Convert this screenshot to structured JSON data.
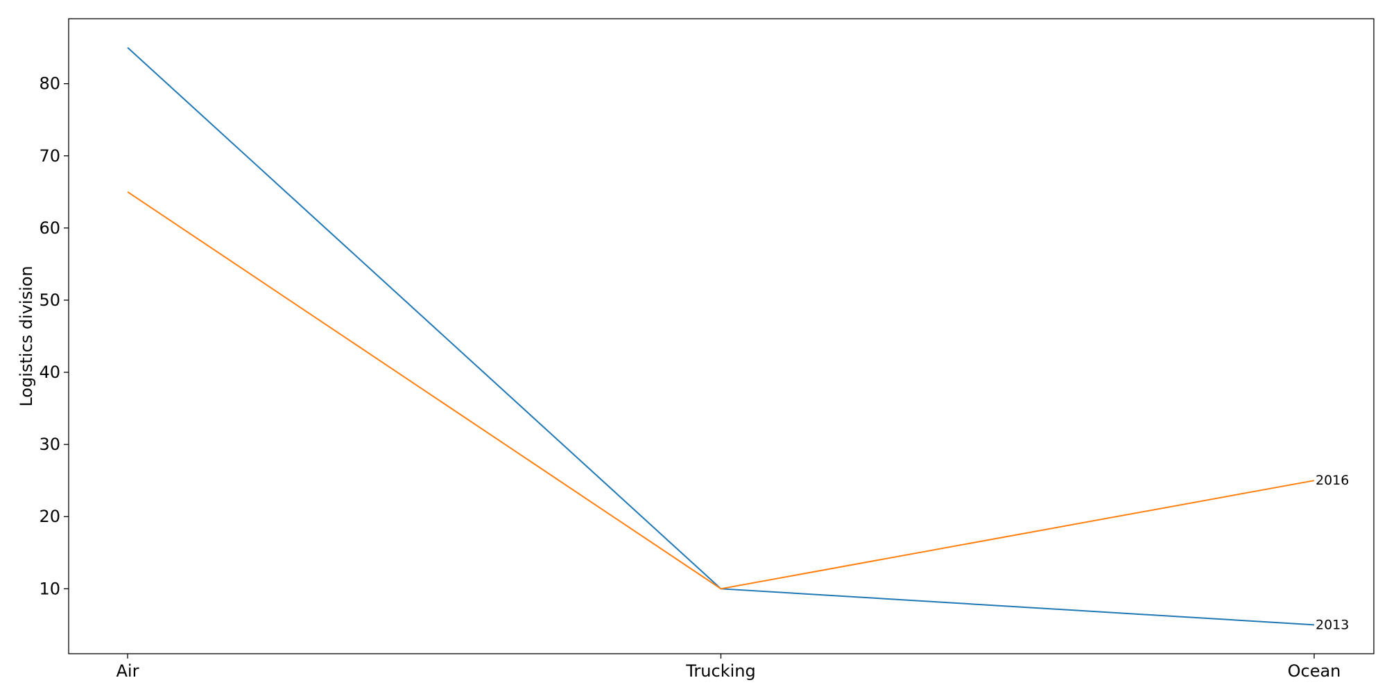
{
  "chart_data": {
    "type": "line",
    "title": "",
    "xlabel": "",
    "ylabel": "Logistics division",
    "categories": [
      "Air",
      "Trucking",
      "Ocean"
    ],
    "yticks": [
      10,
      20,
      30,
      40,
      50,
      60,
      70,
      80
    ],
    "ylim": [
      1,
      89
    ],
    "grid": false,
    "legend": "none",
    "series": [
      {
        "name": "2013",
        "values": [
          85,
          10,
          5
        ],
        "color": "#1f77b4"
      },
      {
        "name": "2016",
        "values": [
          65,
          10,
          25
        ],
        "color": "#ff7f0e"
      }
    ]
  }
}
